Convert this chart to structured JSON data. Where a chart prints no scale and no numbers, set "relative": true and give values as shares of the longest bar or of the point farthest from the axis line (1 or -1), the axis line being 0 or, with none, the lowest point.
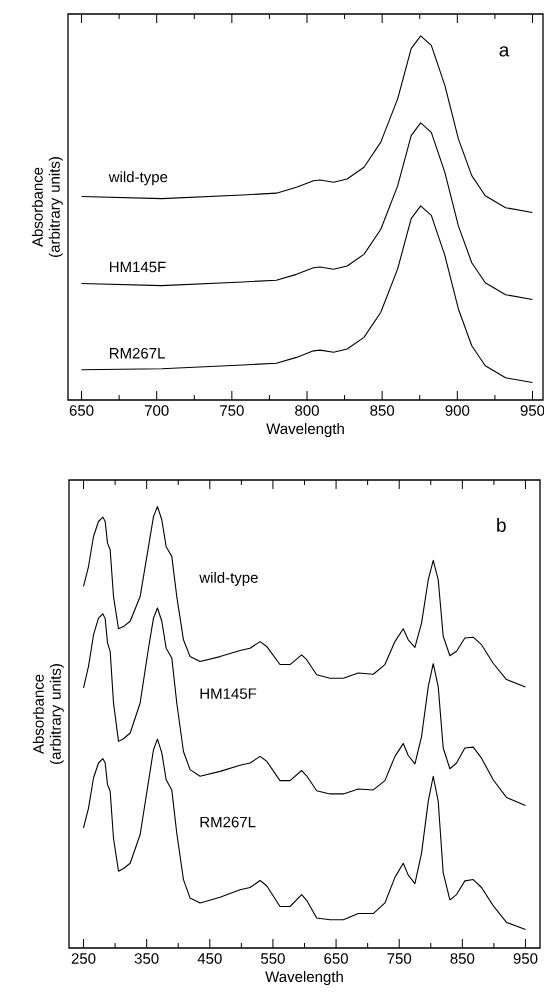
{
  "chart_data": [
    {
      "type": "line",
      "relative": true,
      "xlabel": "Wavelength",
      "ylabel": "Absorbance (arbitrary units)",
      "annotations": [
        "a"
      ],
      "xlim": [
        641,
        957
      ],
      "xticks": [
        650,
        {
          "value": 675,
          "label": null
        },
        700,
        {
          "value": 725,
          "label": null
        },
        750,
        {
          "value": 775,
          "label": null
        },
        800,
        {
          "value": 825,
          "label": null
        },
        850,
        {
          "value": 875,
          "label": null
        },
        900,
        {
          "value": 925,
          "label": null
        },
        950
      ],
      "x": [
        650,
        703.4,
        757.2,
        779.6,
        793,
        804.3,
        808.7,
        817.7,
        826.7,
        837.9,
        849.1,
        860.3,
        869.3,
        875.6,
        882.7,
        891.7,
        900.7,
        909.6,
        918.6,
        932.1,
        950
      ],
      "series": [
        {
          "name": "wild-type",
          "color": "#000000",
          "values": [
            0.559,
            0.553,
            0.563,
            0.568,
            0.584,
            0.602,
            0.604,
            0.598,
            0.607,
            0.639,
            0.708,
            0.827,
            0.965,
            1.0,
            0.974,
            0.864,
            0.717,
            0.616,
            0.561,
            0.528,
            0.515
          ]
        },
        {
          "name": "HM145F",
          "color": "#000000",
          "values": [
            0.32,
            0.314,
            0.324,
            0.329,
            0.345,
            0.363,
            0.365,
            0.359,
            0.368,
            0.4,
            0.469,
            0.588,
            0.726,
            0.761,
            0.735,
            0.625,
            0.478,
            0.377,
            0.322,
            0.289,
            0.276
          ]
        },
        {
          "name": "RM267L",
          "color": "#000000",
          "values": [
            0.083,
            0.086,
            0.096,
            0.101,
            0.117,
            0.135,
            0.137,
            0.131,
            0.14,
            0.172,
            0.241,
            0.36,
            0.498,
            0.533,
            0.507,
            0.397,
            0.25,
            0.149,
            0.094,
            0.061,
            0.048
          ]
        }
      ]
    },
    {
      "type": "line",
      "relative": true,
      "xlabel": "Wavelength",
      "ylabel": "Absorbance (arbitrary units)",
      "annotations": [
        "b"
      ],
      "xlim": [
        227,
        973
      ],
      "xticks": [
        250,
        {
          "value": 300,
          "label": null
        },
        350,
        {
          "value": 400,
          "label": null
        },
        450,
        {
          "value": 500,
          "label": null
        },
        550,
        {
          "value": 600,
          "label": null
        },
        650,
        {
          "value": 700,
          "label": null
        },
        750,
        {
          "value": 800,
          "label": null
        },
        850,
        {
          "value": 900,
          "label": null
        },
        950
      ],
      "x": [
        250,
        257.9,
        265.8,
        273.7,
        280.6,
        284.3,
        288,
        292.2,
        297.5,
        305.4,
        313.3,
        323.9,
        339.7,
        352.9,
        360.8,
        367.1,
        374,
        380.9,
        389.8,
        397.7,
        408.3,
        418.8,
        434.6,
        466.3,
        497.9,
        513.8,
        529.6,
        540.1,
        561.2,
        577.1,
        595.5,
        603.4,
        619.3,
        640.4,
        661.5,
        685.2,
        708.9,
        727.4,
        743.2,
        756.4,
        764.3,
        774.9,
        785.4,
        796,
        803.9,
        811.8,
        819.7,
        830.3,
        840.8,
        854,
        867.2,
        880.4,
        898.8,
        919.9,
        950
      ],
      "series": [
        {
          "name": "wild-type",
          "color": "#000000",
          "values": [
            0.819,
            0.864,
            0.932,
            0.966,
            0.976,
            0.966,
            0.917,
            0.902,
            0.796,
            0.723,
            0.728,
            0.74,
            0.796,
            0.909,
            0.977,
            1.0,
            0.97,
            0.909,
            0.887,
            0.796,
            0.698,
            0.66,
            0.649,
            0.66,
            0.674,
            0.679,
            0.694,
            0.683,
            0.642,
            0.642,
            0.664,
            0.653,
            0.619,
            0.611,
            0.611,
            0.623,
            0.62,
            0.642,
            0.694,
            0.723,
            0.698,
            0.681,
            0.736,
            0.834,
            0.878,
            0.834,
            0.706,
            0.662,
            0.672,
            0.702,
            0.704,
            0.687,
            0.645,
            0.608,
            0.591
          ]
        },
        {
          "name": "HM145F",
          "color": "#000000",
          "values": [
            0.589,
            0.638,
            0.709,
            0.747,
            0.757,
            0.746,
            0.691,
            0.672,
            0.555,
            0.468,
            0.474,
            0.487,
            0.555,
            0.679,
            0.747,
            0.77,
            0.74,
            0.679,
            0.657,
            0.555,
            0.445,
            0.404,
            0.389,
            0.4,
            0.414,
            0.419,
            0.434,
            0.423,
            0.379,
            0.379,
            0.402,
            0.39,
            0.356,
            0.349,
            0.349,
            0.36,
            0.358,
            0.379,
            0.434,
            0.463,
            0.436,
            0.417,
            0.479,
            0.592,
            0.644,
            0.592,
            0.453,
            0.406,
            0.419,
            0.453,
            0.455,
            0.43,
            0.381,
            0.341,
            0.323
          ]
        },
        {
          "name": "RM267L",
          "color": "#000000",
          "values": [
            0.272,
            0.317,
            0.385,
            0.419,
            0.429,
            0.419,
            0.37,
            0.355,
            0.248,
            0.174,
            0.18,
            0.192,
            0.257,
            0.377,
            0.449,
            0.473,
            0.442,
            0.381,
            0.358,
            0.26,
            0.155,
            0.113,
            0.102,
            0.115,
            0.132,
            0.137,
            0.153,
            0.141,
            0.094,
            0.094,
            0.121,
            0.108,
            0.068,
            0.064,
            0.064,
            0.078,
            0.078,
            0.102,
            0.16,
            0.192,
            0.165,
            0.146,
            0.215,
            0.332,
            0.389,
            0.332,
            0.17,
            0.109,
            0.121,
            0.152,
            0.155,
            0.137,
            0.096,
            0.058,
            0.042
          ]
        }
      ]
    }
  ]
}
